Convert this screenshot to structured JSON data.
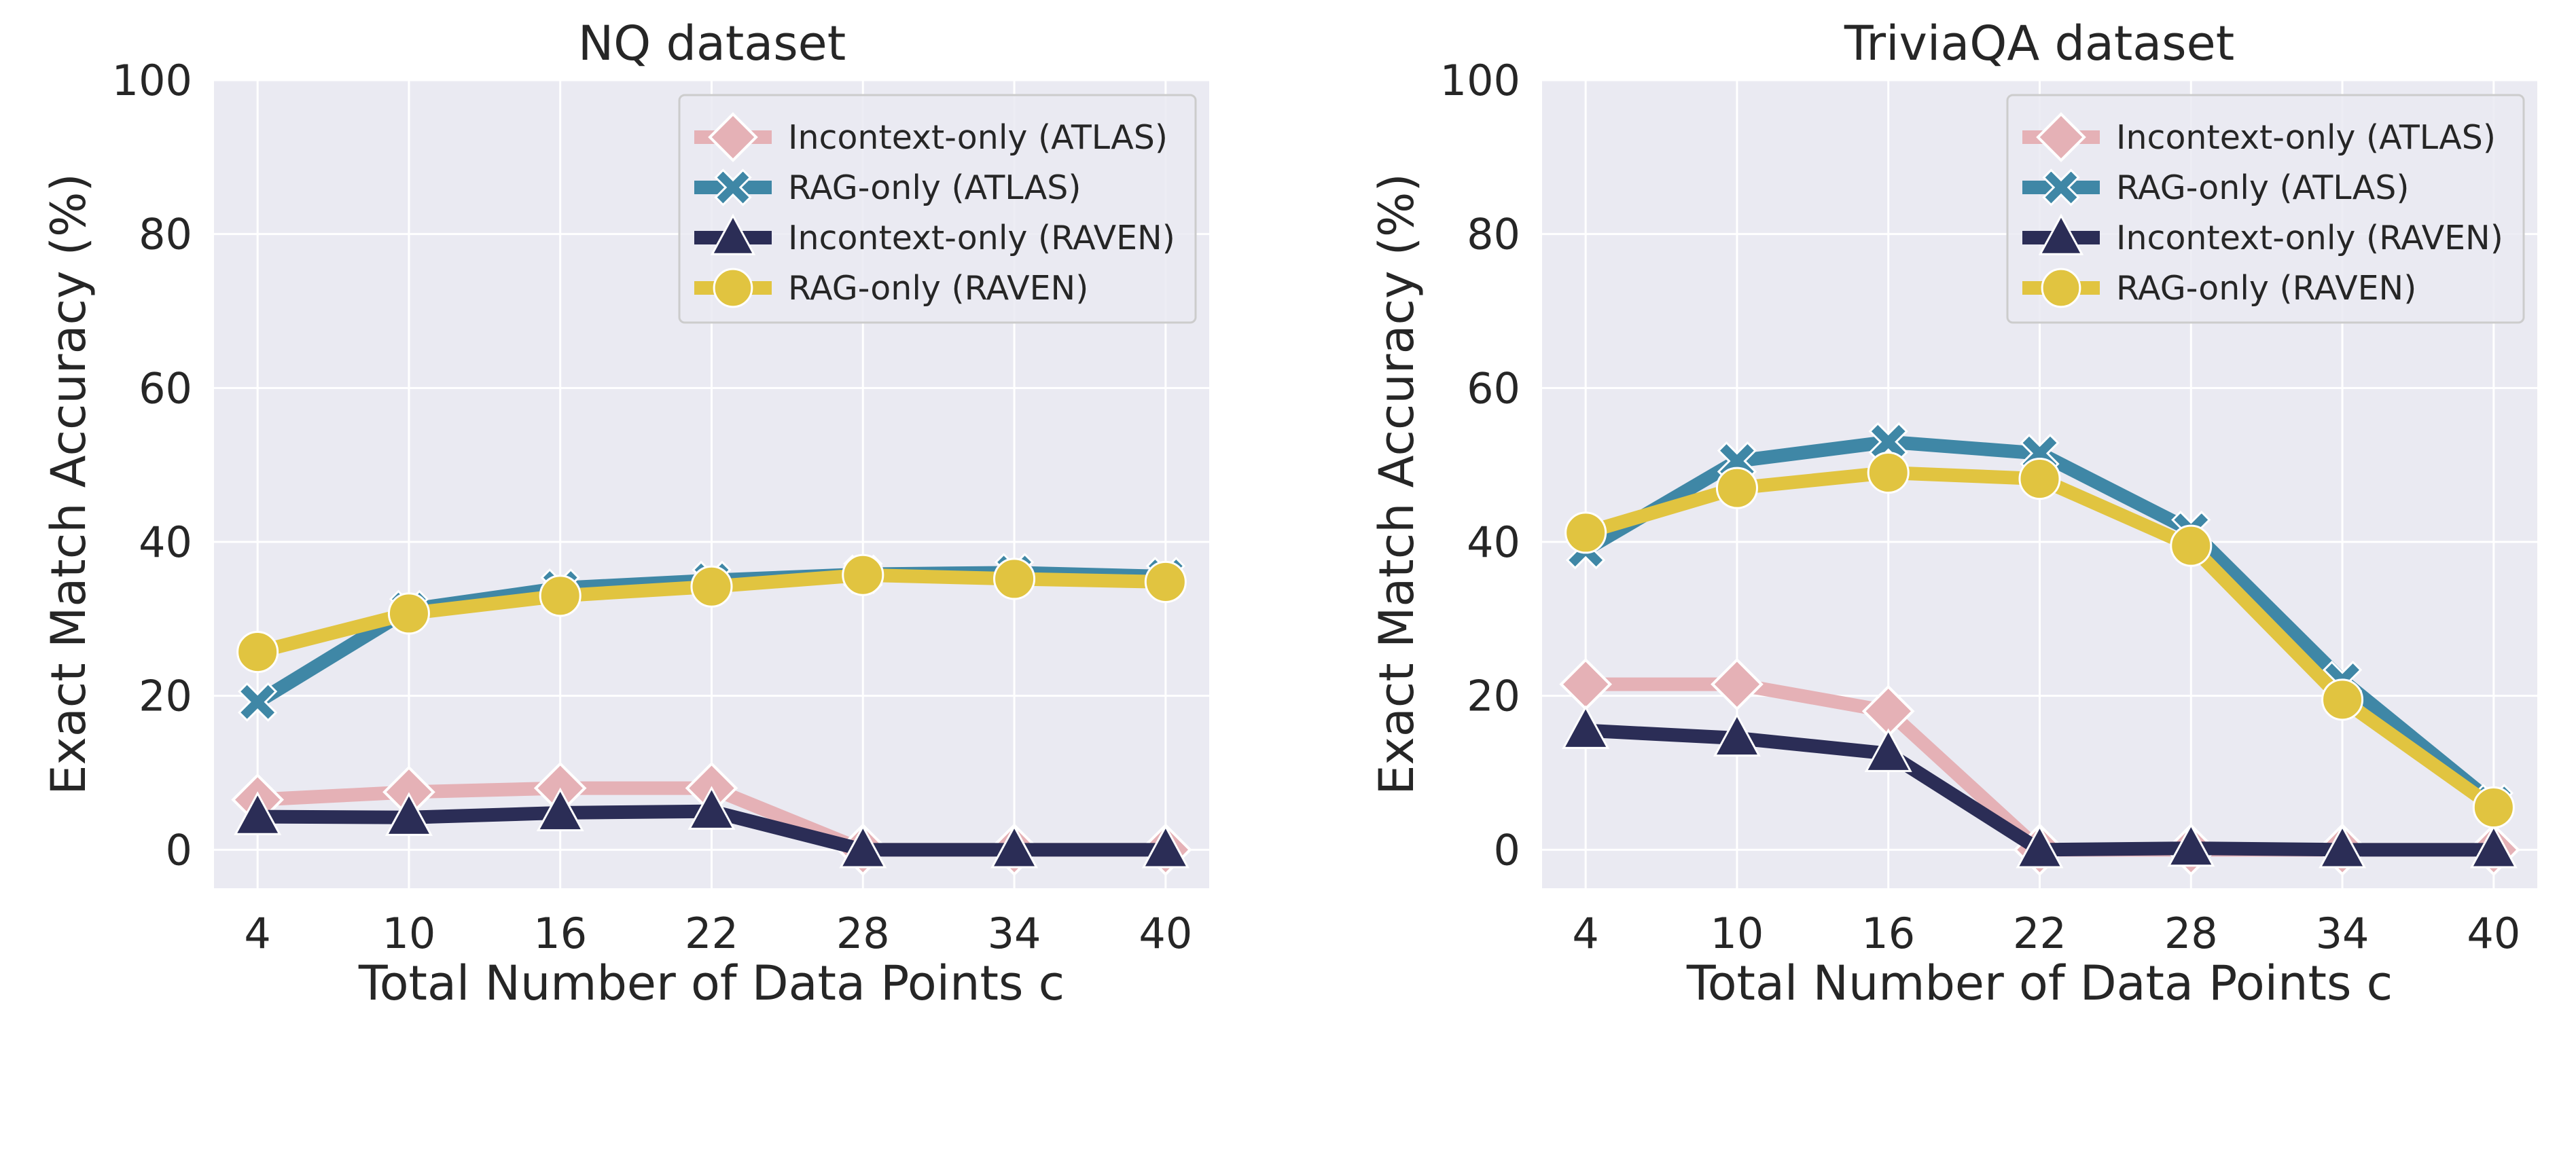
{
  "chart_data": [
    {
      "type": "line",
      "title": "NQ dataset",
      "xlabel": "Total Number of Data Points c",
      "ylabel": "Exact Match Accuracy (%)",
      "x": [
        4,
        10,
        16,
        22,
        28,
        34,
        40
      ],
      "ylim": [
        -5,
        100
      ],
      "yticks": [
        0,
        20,
        40,
        60,
        80,
        100
      ],
      "grid": true,
      "legend_position": "top-right",
      "series": [
        {
          "name": "Incontext-only (ATLAS)",
          "marker": "diamond",
          "color": "#e5b1b6",
          "values": [
            6.5,
            7.5,
            8.0,
            8.0,
            0.0,
            0.0,
            0.0
          ]
        },
        {
          "name": "RAG-only (ATLAS)",
          "marker": "x",
          "color": "#3f87a6",
          "values": [
            19.2,
            31.2,
            34.0,
            35.0,
            35.8,
            36.0,
            35.5
          ]
        },
        {
          "name": "Incontext-only (RAVEN)",
          "marker": "triangle",
          "color": "#2b2d56",
          "values": [
            4.3,
            4.2,
            4.8,
            5.0,
            0.0,
            0.0,
            0.0
          ]
        },
        {
          "name": "RAG-only (RAVEN)",
          "marker": "circle",
          "color": "#e1c440",
          "values": [
            25.7,
            30.7,
            33.0,
            34.2,
            35.7,
            35.2,
            34.8
          ]
        }
      ]
    },
    {
      "type": "line",
      "title": "TriviaQA dataset",
      "xlabel": "Total Number of Data Points c",
      "ylabel": "Exact Match Accuracy (%)",
      "x": [
        4,
        10,
        16,
        22,
        28,
        34,
        40
      ],
      "ylim": [
        -5,
        100
      ],
      "yticks": [
        0,
        20,
        40,
        60,
        80,
        100
      ],
      "grid": true,
      "legend_position": "top-right",
      "series": [
        {
          "name": "Incontext-only (ATLAS)",
          "marker": "diamond",
          "color": "#e5b1b6",
          "values": [
            21.5,
            21.5,
            18.0,
            0.0,
            0.0,
            0.0,
            0.0
          ]
        },
        {
          "name": "RAG-only (ATLAS)",
          "marker": "x",
          "color": "#3f87a6",
          "values": [
            39.0,
            50.5,
            53.0,
            51.5,
            41.5,
            22.0,
            6.0
          ]
        },
        {
          "name": "Incontext-only (RAVEN)",
          "marker": "triangle",
          "color": "#2b2d56",
          "values": [
            15.5,
            14.5,
            12.5,
            0.0,
            0.2,
            0.0,
            0.0
          ]
        },
        {
          "name": "RAG-only (RAVEN)",
          "marker": "circle",
          "color": "#e1c440",
          "values": [
            41.2,
            47.0,
            49.0,
            48.2,
            39.5,
            19.5,
            5.5
          ]
        }
      ]
    }
  ]
}
